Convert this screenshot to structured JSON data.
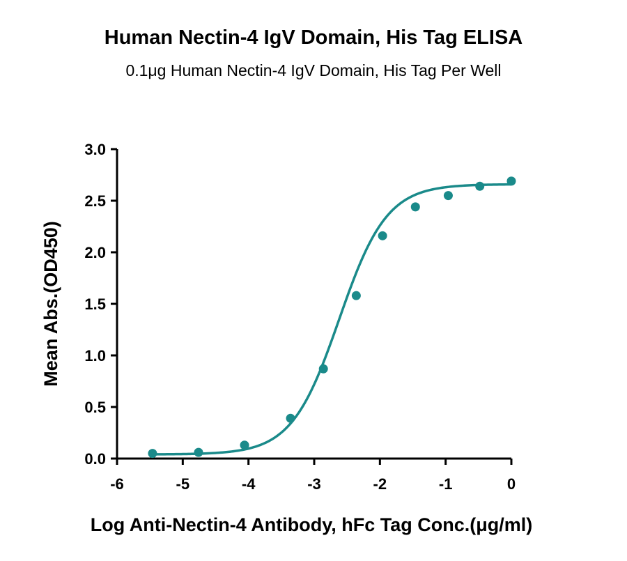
{
  "chart_data": {
    "type": "scatter",
    "title": "Human Nectin-4 IgV Domain, His Tag ELISA",
    "subtitle": "0.1μg Human Nectin-4 IgV Domain, His Tag Per Well",
    "xlabel": "Log Anti-Nectin-4 Antibody, hFc Tag Conc.(μg/ml)",
    "ylabel": "Mean Abs.(OD450)",
    "xlim": [
      -6,
      0
    ],
    "ylim": [
      0,
      3.0
    ],
    "xticks": [
      "-6",
      "-5",
      "-4",
      "-3",
      "-2",
      "-1",
      "0"
    ],
    "yticks": [
      "0.0",
      "0.5",
      "1.0",
      "1.5",
      "2.0",
      "2.5",
      "3.0"
    ],
    "grid": false,
    "color": "#1a8a8a",
    "series": [
      {
        "points": [
          {
            "x": -5.46,
            "y": 0.05
          },
          {
            "x": -4.76,
            "y": 0.06
          },
          {
            "x": -4.06,
            "y": 0.13
          },
          {
            "x": -3.36,
            "y": 0.39
          },
          {
            "x": -2.86,
            "y": 0.87
          },
          {
            "x": -2.36,
            "y": 1.58
          },
          {
            "x": -1.96,
            "y": 2.16
          },
          {
            "x": -1.46,
            "y": 2.44
          },
          {
            "x": -0.96,
            "y": 2.55
          },
          {
            "x": -0.48,
            "y": 2.64
          },
          {
            "x": 0.0,
            "y": 2.69
          }
        ],
        "fit": {
          "model": "4PL",
          "bottom": 0.04,
          "top": 2.66,
          "logEC50": -2.62,
          "hill": 1.2,
          "xrange": [
            -5.46,
            0.0
          ]
        }
      }
    ]
  }
}
